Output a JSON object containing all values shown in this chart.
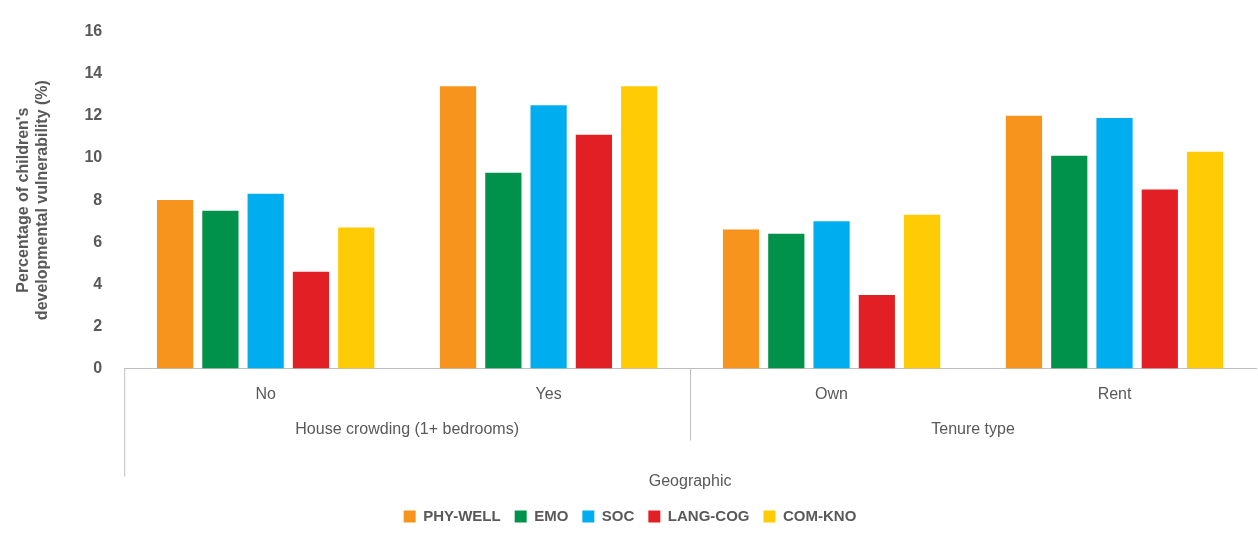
{
  "chart_data": {
    "type": "bar",
    "ylabel": "Percentage of children's developmental vulnerability (%)",
    "xlabel": "Geographic",
    "categories": [
      "No",
      "Yes",
      "Own",
      "Rent"
    ],
    "annotations": [
      "House crowding (1+ bedrooms)",
      "Tenure type"
    ],
    "series": [
      {
        "name": "PHY-WELL",
        "color": "#f7941d",
        "values": [
          8.0,
          13.4,
          6.6,
          12.0
        ]
      },
      {
        "name": "EMO",
        "color": "#00924a",
        "values": [
          7.5,
          9.3,
          6.4,
          10.1
        ]
      },
      {
        "name": "SOC",
        "color": "#00aeef",
        "values": [
          8.3,
          12.5,
          7.0,
          11.9
        ]
      },
      {
        "name": "LANG-COG",
        "color": "#e31f26",
        "values": [
          4.6,
          11.1,
          3.5,
          8.5
        ]
      },
      {
        "name": "COM-KNO",
        "color": "#ffcb05",
        "values": [
          6.7,
          13.4,
          7.3,
          10.3
        ]
      }
    ],
    "ylim": [
      0,
      16
    ],
    "yticks": [
      0,
      2,
      4,
      6,
      8,
      10,
      12,
      14,
      16
    ],
    "grid": false,
    "legend": "bottom"
  }
}
